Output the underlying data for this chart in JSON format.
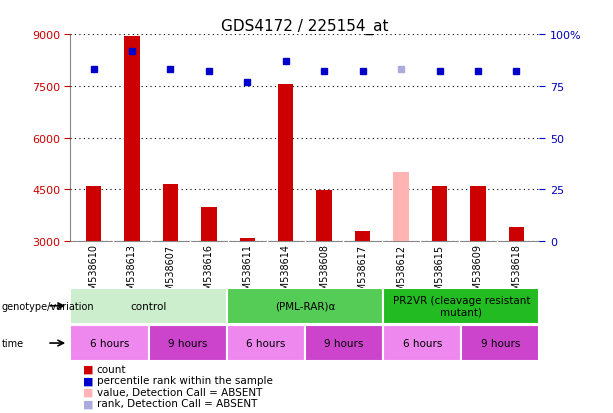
{
  "title": "GDS4172 / 225154_at",
  "samples": [
    "GSM538610",
    "GSM538613",
    "GSM538607",
    "GSM538616",
    "GSM538611",
    "GSM538614",
    "GSM538608",
    "GSM538617",
    "GSM538612",
    "GSM538615",
    "GSM538609",
    "GSM538618"
  ],
  "bar_values": [
    4600,
    8950,
    4650,
    4000,
    3080,
    7550,
    4480,
    3300,
    5000,
    4600,
    4600,
    3400
  ],
  "bar_absent": [
    false,
    false,
    false,
    false,
    false,
    false,
    false,
    false,
    true,
    false,
    false,
    false
  ],
  "rank_values": [
    83,
    92,
    83,
    82,
    77,
    87,
    82,
    82,
    83,
    82,
    82,
    82
  ],
  "rank_absent": [
    false,
    false,
    false,
    false,
    false,
    false,
    false,
    false,
    true,
    false,
    false,
    false
  ],
  "ylim_left": [
    3000,
    9000
  ],
  "ylim_right": [
    0,
    100
  ],
  "yticks_left": [
    3000,
    4500,
    6000,
    7500,
    9000
  ],
  "yticks_right": [
    0,
    25,
    50,
    75,
    100
  ],
  "ytick_labels_left": [
    "3000",
    "4500",
    "6000",
    "7500",
    "9000"
  ],
  "ytick_labels_right": [
    "0",
    "25",
    "50",
    "75",
    "100%"
  ],
  "bar_color_normal": "#cc0000",
  "bar_color_absent": "#ffb3b3",
  "rank_color_normal": "#0000cc",
  "rank_color_absent": "#aaaadd",
  "bg_color": "#ffffff",
  "plot_bg_color": "#ffffff",
  "genotype_groups": [
    {
      "label": "control",
      "start": 0,
      "end": 3,
      "color": "#cceecc"
    },
    {
      "label": "(PML-RAR)α",
      "start": 4,
      "end": 7,
      "color": "#55cc55"
    },
    {
      "label": "PR2VR (cleavage resistant\nmutant)",
      "start": 8,
      "end": 11,
      "color": "#22bb22"
    }
  ],
  "time_groups": [
    {
      "label": "6 hours",
      "start": 0,
      "end": 1,
      "color": "#ee88ee"
    },
    {
      "label": "9 hours",
      "start": 2,
      "end": 3,
      "color": "#cc44cc"
    },
    {
      "label": "6 hours",
      "start": 4,
      "end": 5,
      "color": "#ee88ee"
    },
    {
      "label": "9 hours",
      "start": 6,
      "end": 7,
      "color": "#cc44cc"
    },
    {
      "label": "6 hours",
      "start": 8,
      "end": 9,
      "color": "#ee88ee"
    },
    {
      "label": "9 hours",
      "start": 10,
      "end": 11,
      "color": "#cc44cc"
    }
  ],
  "legend_items": [
    {
      "label": "count",
      "color": "#cc0000"
    },
    {
      "label": "percentile rank within the sample",
      "color": "#0000cc"
    },
    {
      "label": "value, Detection Call = ABSENT",
      "color": "#ffb3b3"
    },
    {
      "label": "rank, Detection Call = ABSENT",
      "color": "#aaaadd"
    }
  ],
  "xlabel_color": "#cc0000",
  "ylabel_right_color": "#0000bb",
  "title_fontsize": 11,
  "tick_fontsize": 8,
  "sample_fontsize": 7,
  "bar_width": 0.4
}
